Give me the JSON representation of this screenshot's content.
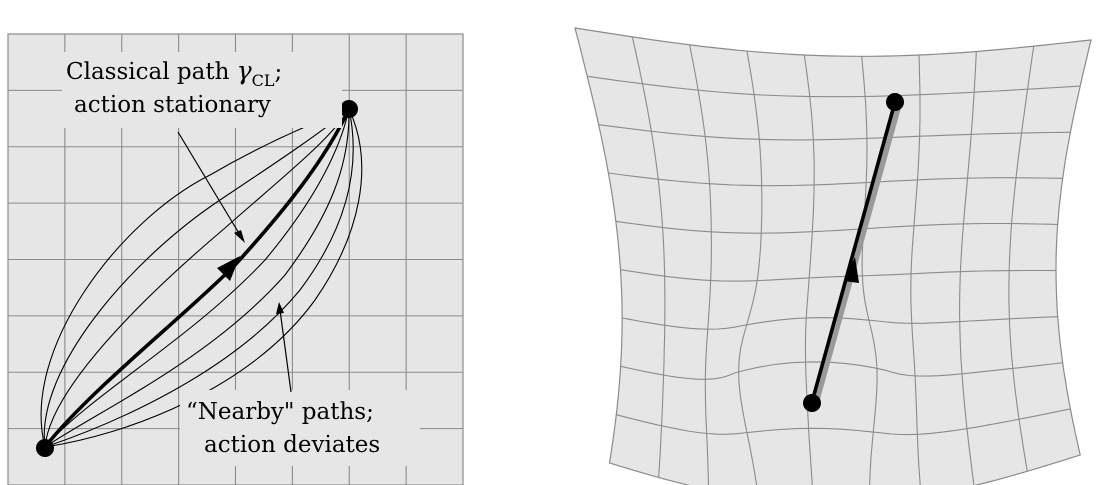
{
  "left_panel": {
    "classical_label": {
      "line1": "Classical path ",
      "gamma": "γ",
      "subscript": "CL",
      "suffix": ";",
      "line2": "action stationary"
    },
    "nearby_label": {
      "line1": "“Nearby\" paths;",
      "line2": "action deviates"
    }
  },
  "colors": {
    "panel_fill": "#e6e6e6",
    "grid_line": "#8b8b8b",
    "path": "#000000",
    "geodesic_shadow": "#9a9a9a"
  }
}
